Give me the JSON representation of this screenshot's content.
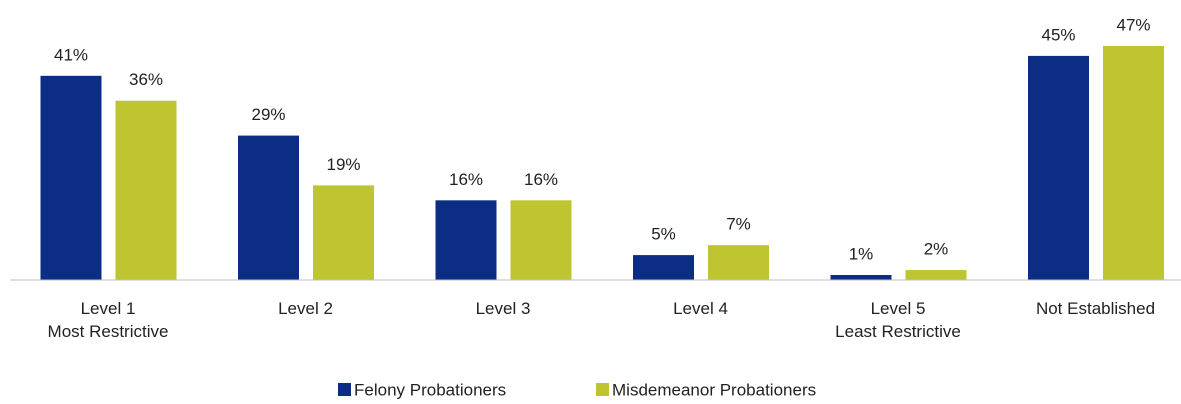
{
  "chart_data": {
    "type": "bar",
    "categories": [
      [
        "Level 1",
        "Most Restrictive"
      ],
      [
        "Level 2"
      ],
      [
        "Level 3"
      ],
      [
        "Level 4"
      ],
      [
        "Level 5",
        "Least Restrictive"
      ],
      [
        "Not Established"
      ]
    ],
    "series": [
      {
        "name": "Felony Probationers",
        "color": "#0b2d84",
        "values": [
          41,
          29,
          16,
          5,
          1,
          45
        ],
        "value_labels": [
          "41%",
          "29%",
          "16%",
          "5%",
          "1%",
          "45%"
        ]
      },
      {
        "name": "Misdemeanor Probationers",
        "color": "#bec531",
        "values": [
          36,
          19,
          16,
          7,
          2,
          47
        ],
        "value_labels": [
          "36%",
          "19%",
          "16%",
          "7%",
          "2%",
          "47%"
        ]
      }
    ],
    "ylim": [
      0,
      50
    ]
  }
}
